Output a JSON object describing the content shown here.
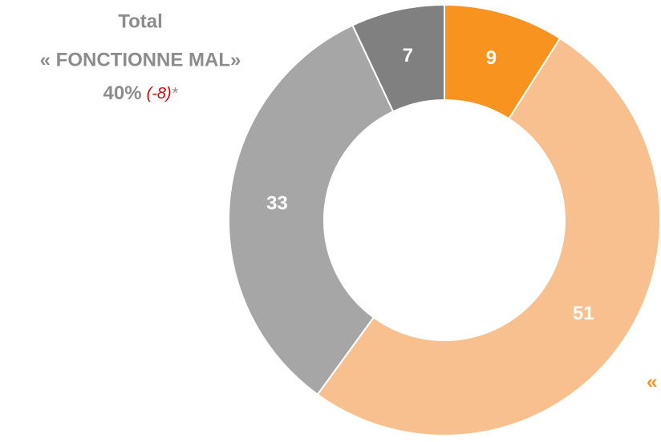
{
  "chart_data": {
    "type": "pie",
    "values": [
      9,
      51,
      33,
      7
    ],
    "colors": [
      "#f7931e",
      "#f9c08f",
      "#a6a6a6",
      "#808080"
    ],
    "annotations": [
      "Total",
      "« FONCTIONNE MAL»",
      "40%",
      "(-8)",
      "*",
      "«"
    ]
  }
}
